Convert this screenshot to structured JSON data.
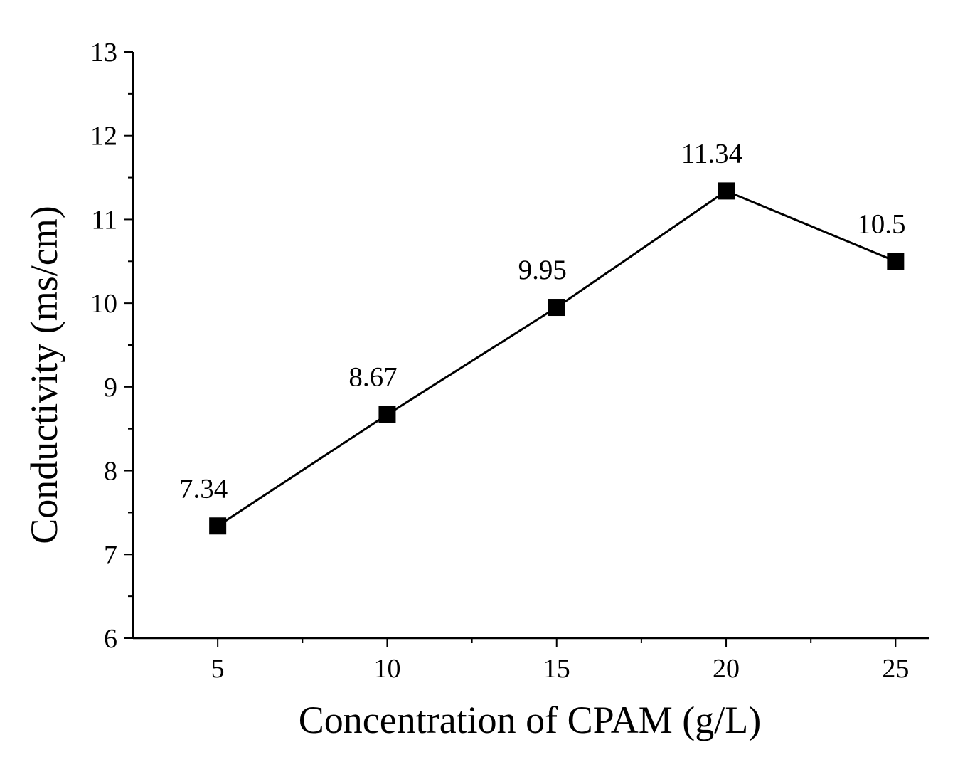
{
  "chart_data": {
    "type": "line",
    "title": "",
    "xlabel": "Concentration of CPAM (g/L)",
    "ylabel": "Conductivity (ms/cm)",
    "x": [
      5,
      10,
      15,
      20,
      25
    ],
    "x_tick_labels": [
      "5",
      "10",
      "15",
      "20",
      "25"
    ],
    "y_tick_labels": [
      "6",
      "7",
      "8",
      "9",
      "10",
      "11",
      "12",
      "13"
    ],
    "y_ticks": [
      6,
      7,
      8,
      9,
      10,
      11,
      12,
      13
    ],
    "xlim": [
      2.5,
      26
    ],
    "ylim": [
      6,
      13
    ],
    "series": [
      {
        "name": "Conductivity",
        "values": [
          7.34,
          8.67,
          9.95,
          11.34,
          10.5
        ],
        "labels": [
          "7.34",
          "8.67",
          "9.95",
          "11.34",
          "10.5"
        ],
        "marker": "square",
        "color": "#000000"
      }
    ],
    "grid": false,
    "legend": "none"
  }
}
